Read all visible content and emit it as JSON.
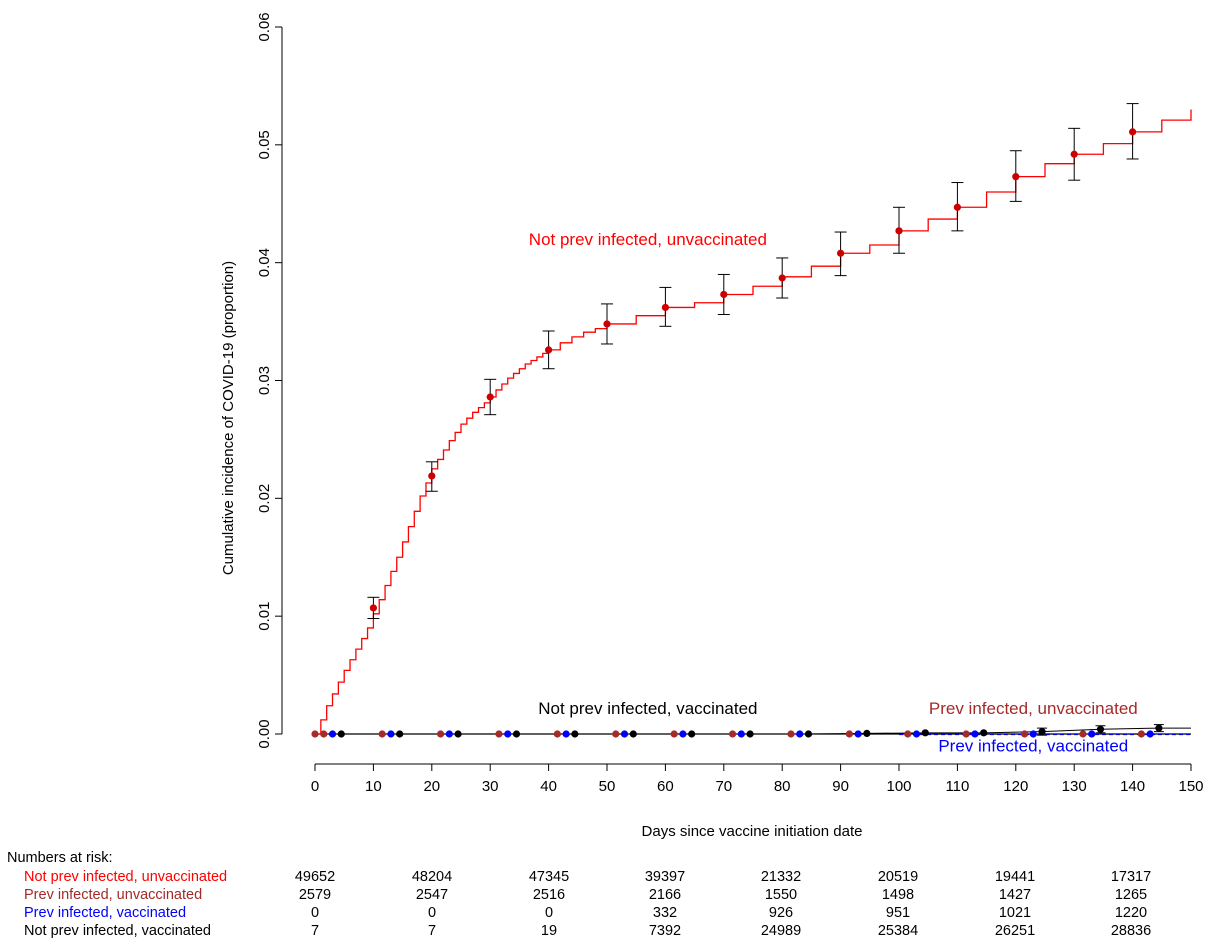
{
  "chart_data": {
    "type": "line",
    "xlabel": "Days since vaccine initiation date",
    "ylabel": "Cumulative incidence of COVID-19 (proportion)",
    "xlim": [
      0,
      150
    ],
    "ylim": [
      0,
      0.06
    ],
    "x_ticks": [
      "0",
      "10",
      "20",
      "30",
      "40",
      "50",
      "60",
      "70",
      "80",
      "90",
      "100",
      "110",
      "120",
      "130",
      "140",
      "150"
    ],
    "y_ticks": [
      "0.00",
      "0.01",
      "0.02",
      "0.03",
      "0.04",
      "0.05",
      "0.06"
    ],
    "grid": false,
    "colors": {
      "not_prev_unvax": "#ff0000",
      "prev_unvax": "#a52a2a",
      "prev_vax": "#0000ff",
      "not_prev_vax": "#000000",
      "marker_main": "#cc0000"
    },
    "series": [
      {
        "key": "not_prev_unvax",
        "name": "Not prev infected, unvaccinated",
        "curve_x": [
          0,
          1,
          2,
          3,
          4,
          5,
          6,
          7,
          8,
          9,
          10,
          11,
          12,
          13,
          14,
          15,
          16,
          17,
          18,
          19,
          20,
          21,
          22,
          23,
          24,
          25,
          26,
          27,
          28,
          29,
          30,
          31,
          32,
          33,
          34,
          35,
          36,
          37,
          38,
          39,
          40,
          42,
          44,
          46,
          48,
          50,
          55,
          60,
          65,
          70,
          75,
          80,
          85,
          90,
          95,
          100,
          105,
          110,
          115,
          120,
          125,
          130,
          135,
          140,
          145,
          150
        ],
        "curve_y": [
          0,
          0.0012,
          0.0024,
          0.0034,
          0.0044,
          0.0054,
          0.0063,
          0.0072,
          0.0081,
          0.009,
          0.0102,
          0.0114,
          0.0126,
          0.0138,
          0.015,
          0.0163,
          0.0176,
          0.0189,
          0.0202,
          0.0213,
          0.0225,
          0.0233,
          0.0241,
          0.0249,
          0.0256,
          0.0263,
          0.0268,
          0.0273,
          0.0277,
          0.0281,
          0.0286,
          0.0292,
          0.0297,
          0.0302,
          0.0306,
          0.031,
          0.0314,
          0.0317,
          0.032,
          0.0323,
          0.0326,
          0.0332,
          0.0337,
          0.0341,
          0.0344,
          0.0348,
          0.0355,
          0.0362,
          0.0366,
          0.0373,
          0.038,
          0.0388,
          0.0397,
          0.0408,
          0.0415,
          0.0427,
          0.0437,
          0.0447,
          0.046,
          0.0473,
          0.0484,
          0.0492,
          0.0501,
          0.0511,
          0.0521,
          0.053
        ],
        "points": [
          {
            "x": 10,
            "y": 0.0107,
            "lo": 0.0098,
            "hi": 0.0116
          },
          {
            "x": 20,
            "y": 0.0219,
            "lo": 0.0206,
            "hi": 0.0231
          },
          {
            "x": 30,
            "y": 0.0286,
            "lo": 0.0271,
            "hi": 0.0301
          },
          {
            "x": 40,
            "y": 0.0326,
            "lo": 0.031,
            "hi": 0.0342
          },
          {
            "x": 50,
            "y": 0.0348,
            "lo": 0.0331,
            "hi": 0.0365
          },
          {
            "x": 60,
            "y": 0.0362,
            "lo": 0.0346,
            "hi": 0.0379
          },
          {
            "x": 70,
            "y": 0.0373,
            "lo": 0.0356,
            "hi": 0.039
          },
          {
            "x": 80,
            "y": 0.0387,
            "lo": 0.037,
            "hi": 0.0404
          },
          {
            "x": 90,
            "y": 0.0408,
            "lo": 0.0389,
            "hi": 0.0426
          },
          {
            "x": 100,
            "y": 0.0427,
            "lo": 0.0408,
            "hi": 0.0447
          },
          {
            "x": 110,
            "y": 0.0447,
            "lo": 0.0427,
            "hi": 0.0468
          },
          {
            "x": 120,
            "y": 0.0473,
            "lo": 0.0452,
            "hi": 0.0495
          },
          {
            "x": 130,
            "y": 0.0492,
            "lo": 0.047,
            "hi": 0.0514
          },
          {
            "x": 140,
            "y": 0.0511,
            "lo": 0.0488,
            "hi": 0.0535
          }
        ]
      },
      {
        "key": "prev_unvax",
        "name": "Prev infected, unvaccinated",
        "points_x": [
          0,
          1.5,
          11.5,
          21.5,
          31.5,
          41.5,
          51.5,
          61.5,
          71.5,
          81.5,
          91.5,
          101.5,
          111.5,
          121.5,
          131.5,
          141.5
        ],
        "points_y": [
          0,
          0,
          0,
          0,
          0,
          0,
          0,
          0,
          0,
          0,
          0,
          0,
          0,
          0,
          0,
          0
        ]
      },
      {
        "key": "prev_vax",
        "name": "Prev infected, vaccinated",
        "points_x": [
          3,
          13,
          23,
          33,
          43,
          53,
          63,
          73,
          83,
          93,
          103,
          113,
          123,
          133,
          143
        ],
        "points_y": [
          0,
          0,
          0,
          0,
          0,
          0,
          0,
          0,
          0,
          0,
          0,
          0,
          0,
          0,
          0
        ]
      },
      {
        "key": "not_prev_vax",
        "name": "Not prev infected, vaccinated",
        "points_x": [
          4.5,
          14.5,
          24.5,
          34.5,
          44.5,
          54.5,
          64.5,
          74.5,
          84.5,
          94.5,
          104.5,
          114.5,
          124.5,
          134.5,
          144.5
        ],
        "points_y": [
          0,
          0,
          0,
          0,
          0,
          0,
          0,
          0,
          0,
          5e-05,
          0.0001,
          0.0001,
          0.0002,
          0.0004,
          0.0005
        ]
      }
    ],
    "annotations": [
      {
        "text": "Not prev infected, unvaccinated",
        "x": 57,
        "y": 0.0415,
        "color": "#ff0000"
      },
      {
        "text": "Not prev infected, vaccinated",
        "x": 57,
        "y": 0.0017,
        "color": "#000000"
      },
      {
        "text": "Prev infected, unvaccinated",
        "x": 123,
        "y": 0.0017,
        "color": "#a52a2a"
      },
      {
        "text": "Prev infected, vaccinated",
        "x": 123,
        "y": -0.0015,
        "color": "#0000ff"
      }
    ],
    "risk_table": {
      "title": "Numbers at risk:",
      "rows": [
        {
          "label": "Not prev infected, unvaccinated",
          "color": "#ff0000",
          "values": [
            "49652",
            "48204",
            "47345",
            "39397",
            "21332",
            "20519",
            "19441",
            "17317"
          ]
        },
        {
          "label": "Prev infected, unvaccinated",
          "color": "#a52a2a",
          "values": [
            "2579",
            "2547",
            "2516",
            "2166",
            "1550",
            "1498",
            "1427",
            "1265"
          ]
        },
        {
          "label": "Prev infected, vaccinated",
          "color": "#0000ff",
          "values": [
            "0",
            "0",
            "0",
            "332",
            "926",
            "951",
            "1021",
            "1220"
          ]
        },
        {
          "label": "Not prev infected, vaccinated",
          "color": "#000000",
          "values": [
            "7",
            "7",
            "19",
            "7392",
            "24989",
            "25384",
            "26251",
            "28836"
          ]
        }
      ]
    }
  }
}
